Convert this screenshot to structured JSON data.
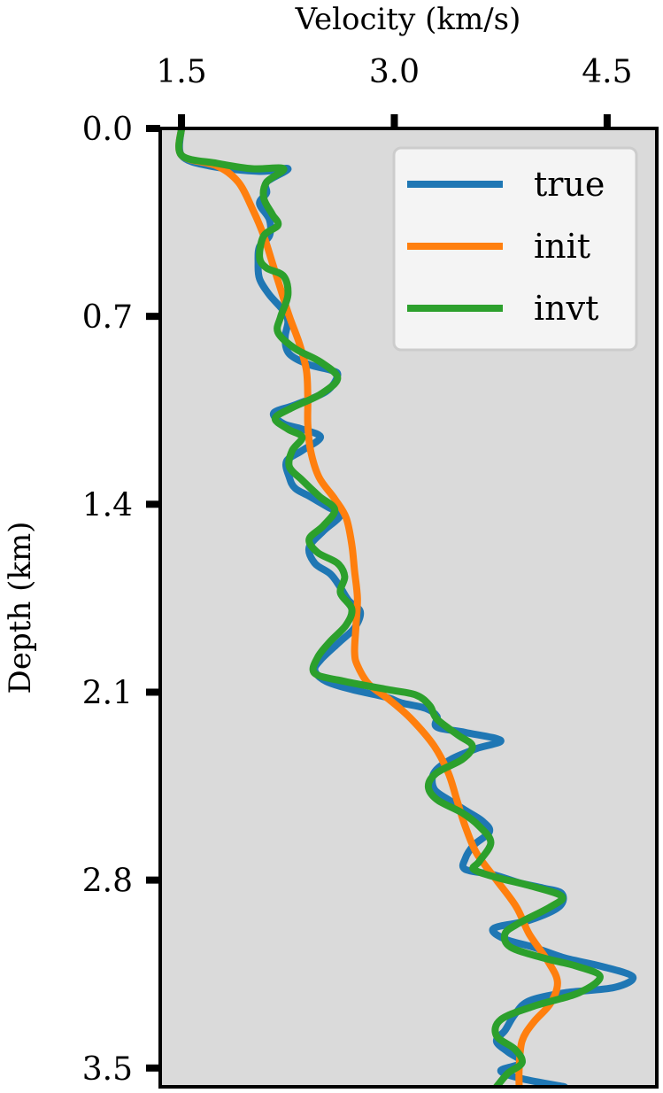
{
  "chart_data": {
    "type": "line",
    "xlabel": "Velocity (km/s)",
    "ylabel": "Depth (km)",
    "xlim": [
      1.35,
      4.85
    ],
    "ylim": [
      3.57,
      0.0
    ],
    "x_ticks": [
      "1.5",
      "3.0",
      "4.5"
    ],
    "x_tick_values": [
      1.5,
      3.0,
      4.5
    ],
    "y_ticks": [
      "0.0",
      "0.7",
      "1.4",
      "2.1",
      "2.8",
      "3.5"
    ],
    "y_tick_values": [
      0.0,
      0.7,
      1.4,
      2.1,
      2.8,
      3.5
    ],
    "x_axis_position": "top",
    "y_axis_inverted": true,
    "grid": false,
    "legend_position": "top-right",
    "background_color": "#dadada",
    "series": [
      {
        "name": "true",
        "color": "#1f77b4",
        "points": [
          [
            1.5,
            0.0
          ],
          [
            1.5,
            0.1
          ],
          [
            1.7,
            0.14
          ],
          [
            2.05,
            0.16
          ],
          [
            2.25,
            0.15
          ],
          [
            2.1,
            0.2
          ],
          [
            2.1,
            0.24
          ],
          [
            2.05,
            0.28
          ],
          [
            2.12,
            0.34
          ],
          [
            2.12,
            0.4
          ],
          [
            2.05,
            0.44
          ],
          [
            2.04,
            0.5
          ],
          [
            2.05,
            0.56
          ],
          [
            2.12,
            0.62
          ],
          [
            2.22,
            0.68
          ],
          [
            2.25,
            0.72
          ],
          [
            2.23,
            0.78
          ],
          [
            2.26,
            0.84
          ],
          [
            2.4,
            0.88
          ],
          [
            2.55,
            0.9
          ],
          [
            2.6,
            0.92
          ],
          [
            2.52,
            0.98
          ],
          [
            2.3,
            1.03
          ],
          [
            2.15,
            1.06
          ],
          [
            2.22,
            1.1
          ],
          [
            2.35,
            1.12
          ],
          [
            2.48,
            1.15
          ],
          [
            2.35,
            1.2
          ],
          [
            2.24,
            1.24
          ],
          [
            2.26,
            1.3
          ],
          [
            2.3,
            1.34
          ],
          [
            2.4,
            1.37
          ],
          [
            2.53,
            1.41
          ],
          [
            2.62,
            1.44
          ],
          [
            2.5,
            1.5
          ],
          [
            2.4,
            1.56
          ],
          [
            2.44,
            1.62
          ],
          [
            2.55,
            1.66
          ],
          [
            2.62,
            1.71
          ],
          [
            2.68,
            1.76
          ],
          [
            2.76,
            1.8
          ],
          [
            2.72,
            1.86
          ],
          [
            2.62,
            1.91
          ],
          [
            2.48,
            1.98
          ],
          [
            2.44,
            2.02
          ],
          [
            2.52,
            2.06
          ],
          [
            2.7,
            2.09
          ],
          [
            2.95,
            2.12
          ],
          [
            3.05,
            2.14
          ],
          [
            3.22,
            2.16
          ],
          [
            3.3,
            2.19
          ],
          [
            3.3,
            2.23
          ],
          [
            3.5,
            2.25
          ],
          [
            3.75,
            2.28
          ],
          [
            3.58,
            2.31
          ],
          [
            3.4,
            2.35
          ],
          [
            3.28,
            2.4
          ],
          [
            3.28,
            2.46
          ],
          [
            3.38,
            2.5
          ],
          [
            3.5,
            2.54
          ],
          [
            3.62,
            2.58
          ],
          [
            3.67,
            2.62
          ],
          [
            3.56,
            2.67
          ],
          [
            3.5,
            2.72
          ],
          [
            3.5,
            2.76
          ],
          [
            3.7,
            2.78
          ],
          [
            3.88,
            2.81
          ],
          [
            4.05,
            2.83
          ],
          [
            4.18,
            2.85
          ],
          [
            4.16,
            2.9
          ],
          [
            3.95,
            2.95
          ],
          [
            3.7,
            2.98
          ],
          [
            3.78,
            3.02
          ],
          [
            3.98,
            3.05
          ],
          [
            4.2,
            3.09
          ],
          [
            4.45,
            3.12
          ],
          [
            4.68,
            3.16
          ],
          [
            4.55,
            3.2
          ],
          [
            4.2,
            3.22
          ],
          [
            3.95,
            3.25
          ],
          [
            3.85,
            3.3
          ],
          [
            3.78,
            3.36
          ],
          [
            3.72,
            3.4
          ],
          [
            3.8,
            3.44
          ],
          [
            3.9,
            3.48
          ],
          [
            3.75,
            3.51
          ],
          [
            3.9,
            3.54
          ],
          [
            4.2,
            3.57
          ]
        ]
      },
      {
        "name": "init",
        "color": "#ff7f0e",
        "points": [
          [
            1.5,
            0.0
          ],
          [
            1.5,
            0.1
          ],
          [
            1.75,
            0.14
          ],
          [
            1.9,
            0.2
          ],
          [
            2.0,
            0.3
          ],
          [
            2.08,
            0.4
          ],
          [
            2.14,
            0.5
          ],
          [
            2.2,
            0.6
          ],
          [
            2.26,
            0.7
          ],
          [
            2.33,
            0.8
          ],
          [
            2.38,
            0.9
          ],
          [
            2.39,
            1.0
          ],
          [
            2.39,
            1.1
          ],
          [
            2.41,
            1.2
          ],
          [
            2.47,
            1.3
          ],
          [
            2.58,
            1.38
          ],
          [
            2.66,
            1.45
          ],
          [
            2.7,
            1.55
          ],
          [
            2.72,
            1.65
          ],
          [
            2.74,
            1.75
          ],
          [
            2.73,
            1.85
          ],
          [
            2.72,
            1.95
          ],
          [
            2.74,
            2.0
          ],
          [
            2.82,
            2.07
          ],
          [
            2.97,
            2.13
          ],
          [
            3.12,
            2.2
          ],
          [
            3.28,
            2.3
          ],
          [
            3.38,
            2.4
          ],
          [
            3.44,
            2.5
          ],
          [
            3.5,
            2.6
          ],
          [
            3.58,
            2.7
          ],
          [
            3.72,
            2.8
          ],
          [
            3.86,
            2.9
          ],
          [
            3.95,
            3.0
          ],
          [
            4.08,
            3.1
          ],
          [
            4.15,
            3.18
          ],
          [
            4.1,
            3.26
          ],
          [
            3.98,
            3.33
          ],
          [
            3.9,
            3.4
          ],
          [
            3.88,
            3.5
          ],
          [
            3.88,
            3.57
          ]
        ]
      },
      {
        "name": "invt",
        "color": "#2ca02c",
        "points": [
          [
            1.5,
            0.0
          ],
          [
            1.5,
            0.1
          ],
          [
            1.75,
            0.13
          ],
          [
            2.0,
            0.15
          ],
          [
            2.22,
            0.15
          ],
          [
            2.1,
            0.2
          ],
          [
            2.08,
            0.26
          ],
          [
            2.14,
            0.32
          ],
          [
            2.18,
            0.36
          ],
          [
            2.08,
            0.4
          ],
          [
            2.05,
            0.48
          ],
          [
            2.1,
            0.52
          ],
          [
            2.22,
            0.55
          ],
          [
            2.25,
            0.62
          ],
          [
            2.2,
            0.7
          ],
          [
            2.18,
            0.76
          ],
          [
            2.3,
            0.82
          ],
          [
            2.48,
            0.87
          ],
          [
            2.6,
            0.93
          ],
          [
            2.48,
            0.99
          ],
          [
            2.28,
            1.04
          ],
          [
            2.16,
            1.08
          ],
          [
            2.25,
            1.12
          ],
          [
            2.35,
            1.15
          ],
          [
            2.28,
            1.2
          ],
          [
            2.26,
            1.26
          ],
          [
            2.35,
            1.31
          ],
          [
            2.47,
            1.37
          ],
          [
            2.58,
            1.42
          ],
          [
            2.5,
            1.48
          ],
          [
            2.4,
            1.53
          ],
          [
            2.46,
            1.58
          ],
          [
            2.6,
            1.62
          ],
          [
            2.65,
            1.67
          ],
          [
            2.62,
            1.73
          ],
          [
            2.7,
            1.79
          ],
          [
            2.66,
            1.85
          ],
          [
            2.55,
            1.91
          ],
          [
            2.46,
            1.97
          ],
          [
            2.44,
            2.03
          ],
          [
            2.65,
            2.06
          ],
          [
            2.95,
            2.09
          ],
          [
            3.15,
            2.11
          ],
          [
            3.25,
            2.15
          ],
          [
            3.3,
            2.2
          ],
          [
            3.45,
            2.26
          ],
          [
            3.55,
            2.3
          ],
          [
            3.48,
            2.35
          ],
          [
            3.3,
            2.4
          ],
          [
            3.24,
            2.45
          ],
          [
            3.3,
            2.5
          ],
          [
            3.48,
            2.55
          ],
          [
            3.6,
            2.6
          ],
          [
            3.68,
            2.66
          ],
          [
            3.6,
            2.73
          ],
          [
            3.56,
            2.76
          ],
          [
            3.72,
            2.79
          ],
          [
            3.95,
            2.82
          ],
          [
            4.18,
            2.86
          ],
          [
            4.1,
            2.9
          ],
          [
            3.88,
            2.96
          ],
          [
            3.78,
            3.0
          ],
          [
            3.82,
            3.05
          ],
          [
            4.05,
            3.09
          ],
          [
            4.28,
            3.12
          ],
          [
            4.45,
            3.16
          ],
          [
            4.3,
            3.22
          ],
          [
            3.98,
            3.27
          ],
          [
            3.75,
            3.32
          ],
          [
            3.72,
            3.38
          ],
          [
            3.85,
            3.43
          ],
          [
            3.9,
            3.48
          ],
          [
            3.8,
            3.52
          ],
          [
            3.72,
            3.57
          ]
        ]
      }
    ]
  }
}
